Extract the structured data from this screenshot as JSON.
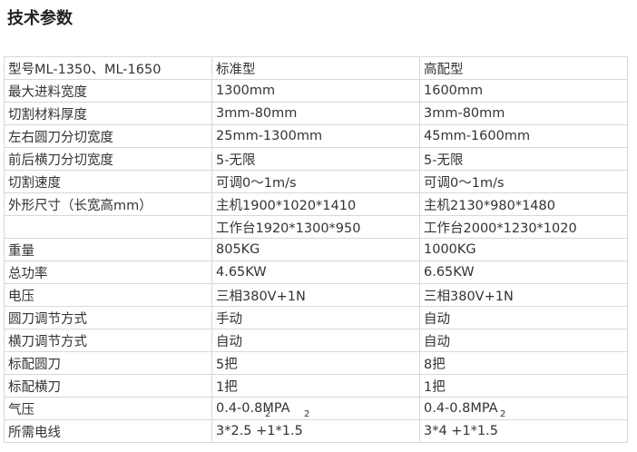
{
  "header": {
    "title": "技术参数"
  },
  "table": {
    "rows": [
      [
        "型号ML-1350、ML-1650",
        "标准型",
        "高配型"
      ],
      [
        "最大进料宽度",
        "1300mm",
        "1600mm"
      ],
      [
        "切割材料厚度",
        "3mm-80mm",
        "3mm-80mm"
      ],
      [
        "左右圆刀分切宽度",
        "25mm-1300mm",
        "45mm-1600mm"
      ],
      [
        "前后横刀分切宽度",
        "5-无限",
        "5-无限"
      ],
      [
        "切割速度",
        "可调0～1m/s",
        "可调0～1m/s"
      ],
      [
        "外形尺寸（长宽高mm）",
        "主机1900*1020*1410",
        "主机2130*980*1480"
      ],
      [
        null,
        "工作台1920*1300*950",
        "工作台2000*1230*1020"
      ],
      [
        "重量",
        "805KG",
        "1000KG"
      ],
      [
        "总功率",
        "4.65KW",
        "6.65KW"
      ],
      [
        "电压",
        "三相380V+1N",
        "三相380V+1N"
      ],
      [
        "圆刀调节方式",
        "手动",
        "自动"
      ],
      [
        "横刀调节方式",
        "自动",
        "自动"
      ],
      [
        "标配圆刀",
        "5把",
        "8把"
      ],
      [
        "标配横刀",
        "1把",
        "1把"
      ],
      [
        "气压",
        "0.4-0.8MPA",
        "0.4-0.8MPA"
      ],
      [
        "所需电线",
        "3*2.5 +1*1.5",
        "3*4 +1*1.5"
      ]
    ],
    "subscripts": {
      "15": {
        "1": [
          "2",
          "2"
        ],
        "2": [
          "2"
        ]
      }
    }
  }
}
